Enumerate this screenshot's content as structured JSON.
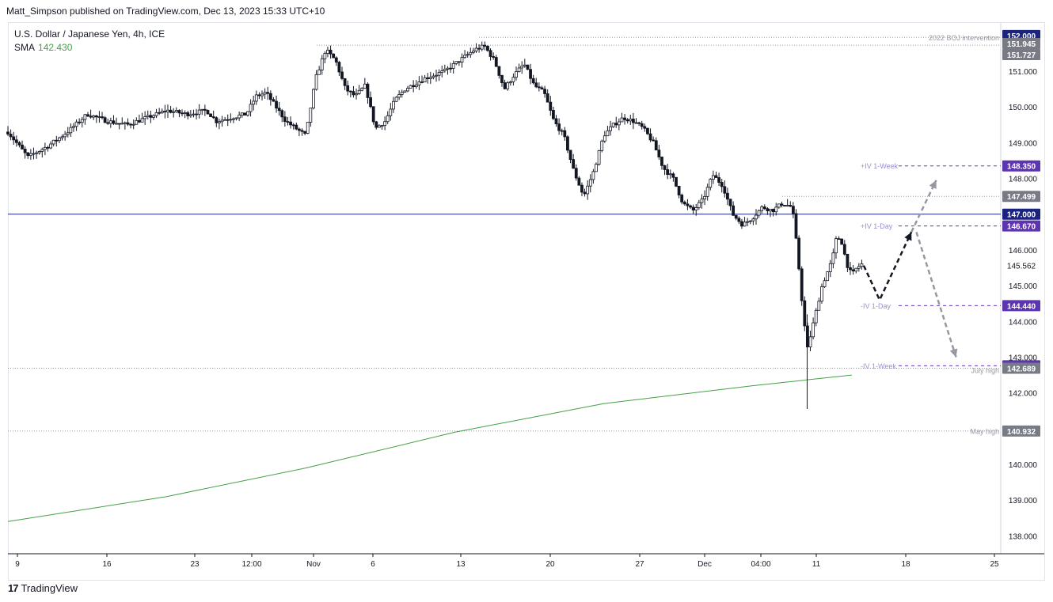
{
  "header": {
    "publisher_line": "Matt_Simpson published on TradingView.com, Dec 13, 2023 15:33 UTC+10"
  },
  "legend": {
    "symbol": "U.S. Dollar / Japanese Yen, 4h, ICE",
    "sma_label": "SMA",
    "sma_value": "142.430"
  },
  "footer": {
    "brand": "TradingView",
    "logo_text": "17"
  },
  "chart_data": {
    "type": "candlestick",
    "symbol": "U.S. Dollar / Japanese Yen",
    "interval": "4h",
    "exchange": "ICE",
    "colors": {
      "candle": "#131722",
      "sma": "#43a047",
      "hline": "#1a237e",
      "iv_label": "#9c8fd4",
      "price_tag_navy": "#1a237e",
      "price_tag_purple": "#5e35b1",
      "price_tag_gray": "#787b86",
      "annotation": "#9598a1"
    },
    "y_axis": {
      "min": 137.5,
      "max": 152.35,
      "ticks": [
        "138.000",
        "139.000",
        "140.000",
        "141.000",
        "142.000",
        "143.000",
        "144.000",
        "145.000",
        "146.000",
        "147.000",
        "148.000",
        "149.000",
        "150.000",
        "151.000",
        "152.000"
      ]
    },
    "x_axis": {
      "ticks": [
        "9",
        "16",
        "23",
        "12:00",
        "Nov",
        "6",
        "13",
        "20",
        "27",
        "Dec",
        "04:00",
        "11",
        "18",
        "25"
      ]
    },
    "price_tags": [
      {
        "value": 152.0,
        "label": "152.000",
        "style": "navy"
      },
      {
        "value": 151.945,
        "label": "151.945",
        "style": "gray"
      },
      {
        "value": 151.727,
        "label": "151.727",
        "style": "gray"
      },
      {
        "value": 148.35,
        "label": "148.350",
        "style": "purple"
      },
      {
        "value": 147.499,
        "label": "147.499",
        "style": "gray"
      },
      {
        "value": 147.0,
        "label": "147.000",
        "style": "navy"
      },
      {
        "value": 146.67,
        "label": "146.670",
        "style": "purple"
      },
      {
        "value": 145.562,
        "label": "145.562",
        "style": "plain"
      },
      {
        "value": 144.44,
        "label": "144.440",
        "style": "purple"
      },
      {
        "value": 142.76,
        "label": "142.760",
        "style": "purple"
      },
      {
        "value": 142.689,
        "label": "142.689",
        "style": "gray"
      },
      {
        "value": 140.932,
        "label": "140.932",
        "style": "gray"
      }
    ],
    "annotations": [
      {
        "text": "2022 BOJ intervention",
        "price": 151.945
      },
      {
        "text": "+IV 1-Week",
        "price": 148.35
      },
      {
        "text": "+IV 1-Day",
        "price": 146.67
      },
      {
        "text": "-IV 1-Day",
        "price": 144.44
      },
      {
        "text": "-IV 1-Week",
        "price": 142.76
      },
      {
        "text": "July high",
        "price": 142.689
      },
      {
        "text": "May high",
        "price": 140.932
      }
    ],
    "horizontal_level": 147.0,
    "sma": [
      {
        "t": 0.0,
        "v": 138.4
      },
      {
        "t": 0.16,
        "v": 139.1
      },
      {
        "t": 0.3,
        "v": 139.9
      },
      {
        "t": 0.45,
        "v": 140.9
      },
      {
        "t": 0.6,
        "v": 141.7
      },
      {
        "t": 0.75,
        "v": 142.2
      },
      {
        "t": 0.85,
        "v": 142.5
      }
    ],
    "price_path": [
      [
        0.0,
        149.3
      ],
      [
        0.02,
        148.6
      ],
      [
        0.04,
        148.9
      ],
      [
        0.06,
        149.3
      ],
      [
        0.08,
        149.8
      ],
      [
        0.1,
        149.6
      ],
      [
        0.12,
        149.5
      ],
      [
        0.14,
        149.7
      ],
      [
        0.16,
        149.9
      ],
      [
        0.18,
        149.8
      ],
      [
        0.2,
        149.9
      ],
      [
        0.21,
        149.6
      ],
      [
        0.24,
        149.8
      ],
      [
        0.25,
        150.3
      ],
      [
        0.26,
        150.4
      ],
      [
        0.28,
        149.6
      ],
      [
        0.3,
        149.2
      ],
      [
        0.31,
        150.8
      ],
      [
        0.32,
        151.6
      ],
      [
        0.33,
        151.3
      ],
      [
        0.34,
        150.5
      ],
      [
        0.35,
        150.3
      ],
      [
        0.36,
        150.6
      ],
      [
        0.37,
        149.4
      ],
      [
        0.38,
        149.6
      ],
      [
        0.39,
        150.2
      ],
      [
        0.4,
        150.5
      ],
      [
        0.42,
        150.8
      ],
      [
        0.44,
        151.0
      ],
      [
        0.46,
        151.4
      ],
      [
        0.47,
        151.6
      ],
      [
        0.48,
        151.7
      ],
      [
        0.49,
        151.3
      ],
      [
        0.5,
        150.5
      ],
      [
        0.51,
        150.9
      ],
      [
        0.52,
        151.2
      ],
      [
        0.53,
        150.6
      ],
      [
        0.54,
        150.4
      ],
      [
        0.55,
        149.6
      ],
      [
        0.56,
        149.2
      ],
      [
        0.57,
        148.2
      ],
      [
        0.58,
        147.5
      ],
      [
        0.59,
        148.2
      ],
      [
        0.6,
        149.2
      ],
      [
        0.61,
        149.5
      ],
      [
        0.62,
        149.7
      ],
      [
        0.63,
        149.6
      ],
      [
        0.64,
        149.4
      ],
      [
        0.65,
        149.0
      ],
      [
        0.66,
        148.3
      ],
      [
        0.67,
        148.0
      ],
      [
        0.68,
        147.3
      ],
      [
        0.69,
        147.1
      ],
      [
        0.7,
        147.4
      ],
      [
        0.71,
        148.1
      ],
      [
        0.72,
        147.8
      ],
      [
        0.73,
        147.0
      ],
      [
        0.74,
        146.7
      ],
      [
        0.75,
        146.9
      ],
      [
        0.76,
        147.2
      ],
      [
        0.77,
        147.1
      ],
      [
        0.78,
        147.3
      ],
      [
        0.79,
        147.2
      ],
      [
        0.795,
        146.0
      ],
      [
        0.8,
        144.5
      ],
      [
        0.805,
        143.2
      ],
      [
        0.81,
        143.8
      ],
      [
        0.815,
        144.4
      ],
      [
        0.82,
        145.0
      ],
      [
        0.83,
        145.7
      ],
      [
        0.835,
        146.4
      ],
      [
        0.84,
        146.2
      ],
      [
        0.845,
        145.6
      ],
      [
        0.85,
        145.3
      ],
      [
        0.855,
        145.5
      ],
      [
        0.86,
        145.6
      ]
    ],
    "projections": [
      {
        "style": "black",
        "points": [
          [
            145.562,
            0.862
          ],
          [
            144.6,
            0.878
          ],
          [
            146.5,
            0.91
          ]
        ]
      },
      {
        "style": "gray",
        "points": [
          [
            146.5,
            0.91
          ],
          [
            147.95,
            0.935
          ]
        ]
      },
      {
        "style": "gray",
        "points": [
          [
            146.5,
            0.915
          ],
          [
            143.0,
            0.955
          ]
        ]
      }
    ]
  }
}
